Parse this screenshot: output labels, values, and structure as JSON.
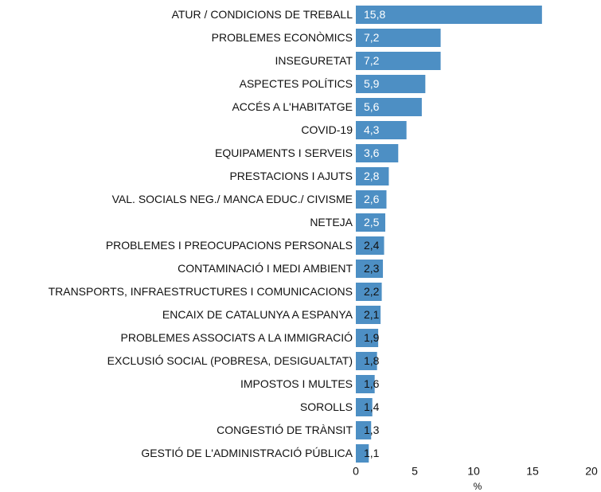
{
  "chart_data": {
    "type": "barh",
    "categories": [
      "ATUR / CONDICIONS DE TREBALL",
      "PROBLEMES ECONÒMICS",
      "INSEGURETAT",
      "ASPECTES POLÍTICS",
      "ACCÉS A L'HABITATGE",
      "COVID-19",
      "EQUIPAMENTS I SERVEIS",
      "PRESTACIONS I AJUTS",
      "VAL. SOCIALS NEG./ MANCA EDUC./ CIVISME",
      "NETEJA",
      "PROBLEMES I PREOCUPACIONS PERSONALS",
      "CONTAMINACIÓ I MEDI AMBIENT",
      "TRANSPORTS, INFRAESTRUCTURES I COMUNICACIONS",
      "ENCAIX DE CATALUNYA A ESPANYA",
      "PROBLEMES ASSOCIATS A LA IMMIGRACIÓ",
      "EXCLUSIÓ SOCIAL (POBRESA, DESIGUALTAT)",
      "IMPOSTOS I MULTES",
      "SOROLLS",
      "CONGESTIÓ DE TRÀNSIT",
      "GESTIÓ DE L'ADMINISTRACIÓ PÚBLICA"
    ],
    "values": [
      15.8,
      7.2,
      7.2,
      5.9,
      5.6,
      4.3,
      3.6,
      2.8,
      2.6,
      2.5,
      2.4,
      2.3,
      2.2,
      2.1,
      1.9,
      1.8,
      1.6,
      1.4,
      1.3,
      1.1
    ],
    "value_labels": [
      "15,8",
      "7,2",
      "7,2",
      "5,9",
      "5,6",
      "4,3",
      "3,6",
      "2,8",
      "2,6",
      "2,5",
      "2,4",
      "2,3",
      "2,2",
      "2,1",
      "1,9",
      "1,8",
      "1,6",
      "1,4",
      "1,3",
      "1,1"
    ],
    "color": "#4d8fc4",
    "xlim": [
      0,
      20
    ],
    "xticks": [
      0,
      5,
      10,
      15,
      20
    ],
    "x_label": "%"
  }
}
